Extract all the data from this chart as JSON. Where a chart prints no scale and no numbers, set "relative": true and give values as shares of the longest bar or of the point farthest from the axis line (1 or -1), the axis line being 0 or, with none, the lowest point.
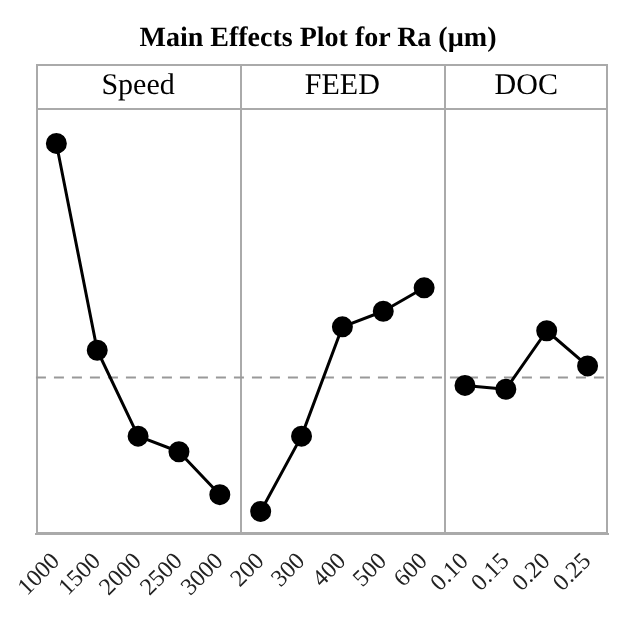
{
  "chart_data": {
    "type": "line",
    "title": "Main Effects Plot for Ra  (µm)",
    "relative": true,
    "marker": "circle",
    "line_style": "solid",
    "grid": false,
    "legend": false,
    "tick_labels": "x",
    "categories": [
      "1000",
      "1500",
      "2000",
      "2500",
      "3000",
      "200",
      "300",
      "400",
      "500",
      "600",
      "0.10",
      "0.15",
      "0.20",
      "0.25"
    ],
    "annotations": [
      "Speed",
      "FEED",
      "DOC"
    ],
    "series": [
      {
        "color": "#000000",
        "values": [
          1.0,
          0.47,
          0.25,
          0.21,
          0.1,
          null,
          null,
          null,
          null,
          null,
          null,
          null,
          null,
          null
        ]
      },
      {
        "color": "#000000",
        "values": [
          null,
          null,
          null,
          null,
          null,
          0.057,
          0.25,
          0.53,
          0.57,
          0.63,
          null,
          null,
          null,
          null
        ]
      },
      {
        "color": "#000000",
        "values": [
          null,
          null,
          null,
          null,
          null,
          null,
          null,
          null,
          null,
          null,
          0.38,
          0.37,
          0.52,
          0.43
        ]
      }
    ],
    "ref_lines": [
      {
        "axis": "y",
        "value": 0.4,
        "line_style": "dashed",
        "color": "#999999"
      }
    ]
  }
}
